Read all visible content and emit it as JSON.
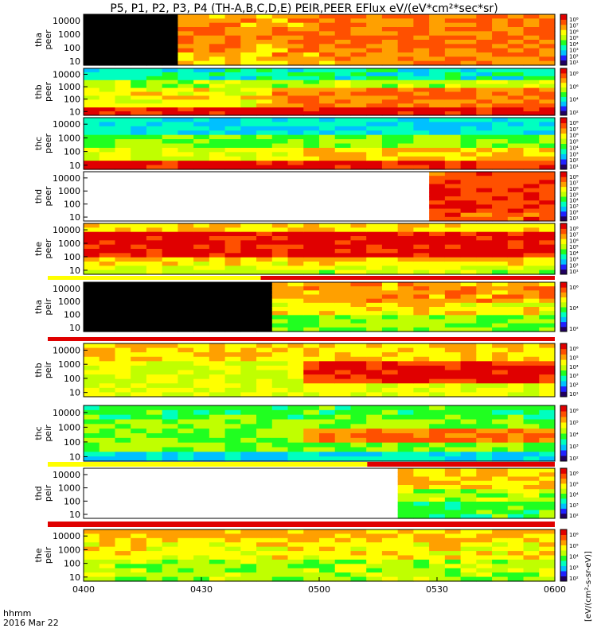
{
  "title": "P5, P1, P2, P3, P4 (TH-A,B,C,D,E) PEIR,PEER EFlux eV/(eV*cm²*sec*sr)",
  "bottom_left": {
    "format_label": "hhmm",
    "date_label": "2016 Mar 22"
  },
  "colorbar_unit_label": "[eV/(cm²-s-sr-eV)]",
  "chart_data": {
    "type": "heatmap",
    "x_axis": {
      "range": [
        "04:00",
        "06:00"
      ],
      "tick_labels": [
        "0400",
        "0430",
        "0500",
        "0530",
        "0600"
      ]
    },
    "y_axis_tick_labels": [
      "10000",
      "1000",
      "100",
      "10"
    ],
    "y_scale": "log",
    "y_range_eV": [
      5,
      30000
    ],
    "colorbar_scale": "log",
    "colormap": [
      "#200060",
      "#2020ff",
      "#00c0ff",
      "#00ffc0",
      "#20ff20",
      "#c0ff00",
      "#ffff00",
      "#ffa000",
      "#ff5000",
      "#e00000"
    ],
    "fill_colors": {
      "black": "#000000",
      "white": "#ffffff"
    },
    "panels": [
      {
        "label": [
          "tha",
          "peer"
        ],
        "cbar": [
          "10⁸",
          "10⁷",
          "10⁶",
          "10⁵",
          "10⁴",
          "10³",
          "10²",
          "10¹"
        ],
        "no_data_until_fraction": 0.195
      },
      {
        "label": [
          "thb",
          "peer"
        ],
        "cbar": [
          "10⁸",
          "10⁶",
          "10⁴",
          "10²"
        ]
      },
      {
        "label": [
          "thc",
          "peer"
        ],
        "cbar": [
          "10⁸",
          "10⁷",
          "10⁶",
          "10⁵",
          "10⁴",
          "10³",
          "10²",
          "10¹"
        ]
      },
      {
        "label": [
          "thd",
          "peer"
        ],
        "cbar": [
          "10⁸",
          "10⁷",
          "10⁶",
          "10⁵",
          "10⁴",
          "10³",
          "10²",
          "10¹"
        ],
        "empty_until_fraction": 0.735
      },
      {
        "label": [
          "the",
          "peer"
        ],
        "cbar": [
          "10⁸",
          "10⁷",
          "10⁶",
          "10⁵",
          "10⁴",
          "10³",
          "10²",
          "10¹"
        ]
      },
      {
        "label": [
          "tha",
          "peir"
        ],
        "cbar": [
          "10⁶",
          "10⁴",
          "10²"
        ],
        "no_data_until_fraction": 0.385
      },
      {
        "label": [
          "thb",
          "peir"
        ],
        "cbar": [
          "10⁶",
          "10⁵",
          "10⁴",
          "10³",
          "10²",
          "10¹"
        ]
      },
      {
        "label": [
          "thc",
          "peir"
        ],
        "cbar": [
          "10⁶",
          "10⁵",
          "10⁴",
          "10³",
          "10²"
        ]
      },
      {
        "label": [
          "thd",
          "peir"
        ],
        "cbar": [
          "10⁶",
          "10⁵",
          "10⁴",
          "10³",
          "10²"
        ],
        "empty_until_fraction": 0.655
      },
      {
        "label": [
          "the",
          "peir"
        ],
        "cbar": [
          "10⁶",
          "10⁵",
          "10⁴",
          "10³",
          "10²"
        ]
      }
    ]
  }
}
